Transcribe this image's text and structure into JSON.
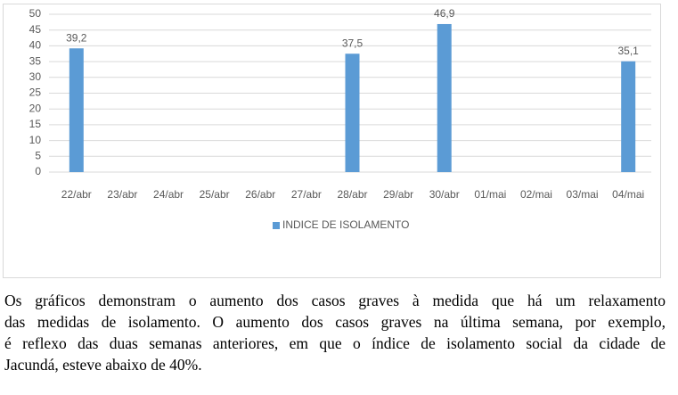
{
  "chart_data": {
    "type": "bar",
    "categories": [
      "22/abr",
      "23/abr",
      "24/abr",
      "25/abr",
      "26/abr",
      "27/abr",
      "28/abr",
      "29/abr",
      "30/abr",
      "01/mai",
      "02/mai",
      "03/mai",
      "04/mai"
    ],
    "series": [
      {
        "name": "INDICE DE ISOLAMENTO",
        "color": "#5b9bd5",
        "values": [
          39.2,
          null,
          null,
          null,
          null,
          null,
          37.5,
          null,
          46.9,
          null,
          null,
          null,
          35.1
        ],
        "value_labels": [
          "39,2",
          null,
          null,
          null,
          null,
          null,
          "37,5",
          null,
          "46,9",
          null,
          null,
          null,
          "35,1"
        ]
      }
    ],
    "ylim": [
      0,
      50
    ],
    "yticks": [
      0,
      5,
      10,
      15,
      20,
      25,
      30,
      35,
      40,
      45,
      50
    ],
    "grid": true,
    "legend": "bottom"
  },
  "paragraph": [
    "Os gráficos demonstram o aumento dos casos graves à medida que há um relaxamento",
    "das medidas de isolamento. O aumento dos casos graves na última semana, por exemplo,",
    "é reflexo das duas semanas anteriores, em que o índice de isolamento social da cidade de",
    "Jacundá, esteve abaixo de 40%."
  ]
}
